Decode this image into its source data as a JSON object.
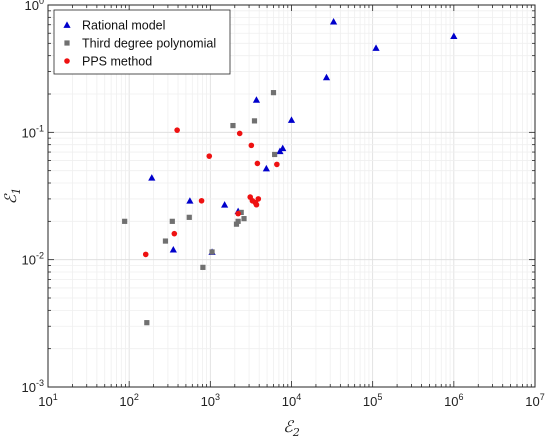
{
  "chart_data": {
    "type": "scatter",
    "title": "",
    "xlabel": "ℰ",
    "xlabel_sub": "2",
    "ylabel": "ℰ",
    "ylabel_sub": "1",
    "xscale": "log",
    "yscale": "log",
    "xlim": [
      10,
      10000000
    ],
    "ylim": [
      0.001,
      1
    ],
    "grid": true,
    "legend_position": "top-left",
    "x_ticks": [
      {
        "value": 10,
        "base": "10",
        "exp": "1"
      },
      {
        "value": 100,
        "base": "10",
        "exp": "2"
      },
      {
        "value": 1000,
        "base": "10",
        "exp": "3"
      },
      {
        "value": 10000,
        "base": "10",
        "exp": "4"
      },
      {
        "value": 100000,
        "base": "10",
        "exp": "5"
      },
      {
        "value": 1000000,
        "base": "10",
        "exp": "6"
      },
      {
        "value": 10000000,
        "base": "10",
        "exp": "7"
      }
    ],
    "y_ticks": [
      {
        "value": 0.001,
        "base": "10",
        "exp": "-3"
      },
      {
        "value": 0.01,
        "base": "10",
        "exp": "-2"
      },
      {
        "value": 0.1,
        "base": "10",
        "exp": "-1"
      },
      {
        "value": 1,
        "base": "10",
        "exp": "0"
      }
    ],
    "series": [
      {
        "name": "Rational model",
        "marker": "triangle",
        "color": "#0000cc",
        "points": [
          [
            190,
            0.044
          ],
          [
            350,
            0.012
          ],
          [
            560,
            0.029
          ],
          [
            1050,
            0.0115
          ],
          [
            1500,
            0.027
          ],
          [
            2200,
            0.024
          ],
          [
            3700,
            0.18
          ],
          [
            4900,
            0.052
          ],
          [
            7200,
            0.071
          ],
          [
            7800,
            0.075
          ],
          [
            10000,
            0.125
          ],
          [
            27000,
            0.27
          ],
          [
            33000,
            0.74
          ],
          [
            110000,
            0.46
          ],
          [
            1000000,
            0.57
          ]
        ]
      },
      {
        "name": "Third degree polynomial",
        "marker": "square",
        "color": "#707070",
        "points": [
          [
            88,
            0.02
          ],
          [
            165,
            0.0032
          ],
          [
            280,
            0.014
          ],
          [
            340,
            0.02
          ],
          [
            550,
            0.0215
          ],
          [
            810,
            0.0087
          ],
          [
            1050,
            0.0115
          ],
          [
            1900,
            0.113
          ],
          [
            2100,
            0.019
          ],
          [
            2200,
            0.02
          ],
          [
            2400,
            0.0235
          ],
          [
            2600,
            0.021
          ],
          [
            3500,
            0.123
          ],
          [
            6000,
            0.205
          ],
          [
            6200,
            0.067
          ]
        ]
      },
      {
        "name": "PPS method",
        "marker": "circle",
        "color": "#ee1111",
        "points": [
          [
            160,
            0.011
          ],
          [
            360,
            0.016
          ],
          [
            390,
            0.104
          ],
          [
            780,
            0.029
          ],
          [
            970,
            0.065
          ],
          [
            2200,
            0.023
          ],
          [
            2300,
            0.098
          ],
          [
            3100,
            0.031
          ],
          [
            3200,
            0.079
          ],
          [
            3300,
            0.029
          ],
          [
            3600,
            0.028
          ],
          [
            3700,
            0.027
          ],
          [
            3800,
            0.057
          ],
          [
            3900,
            0.03
          ],
          [
            6600,
            0.056
          ]
        ]
      }
    ]
  }
}
